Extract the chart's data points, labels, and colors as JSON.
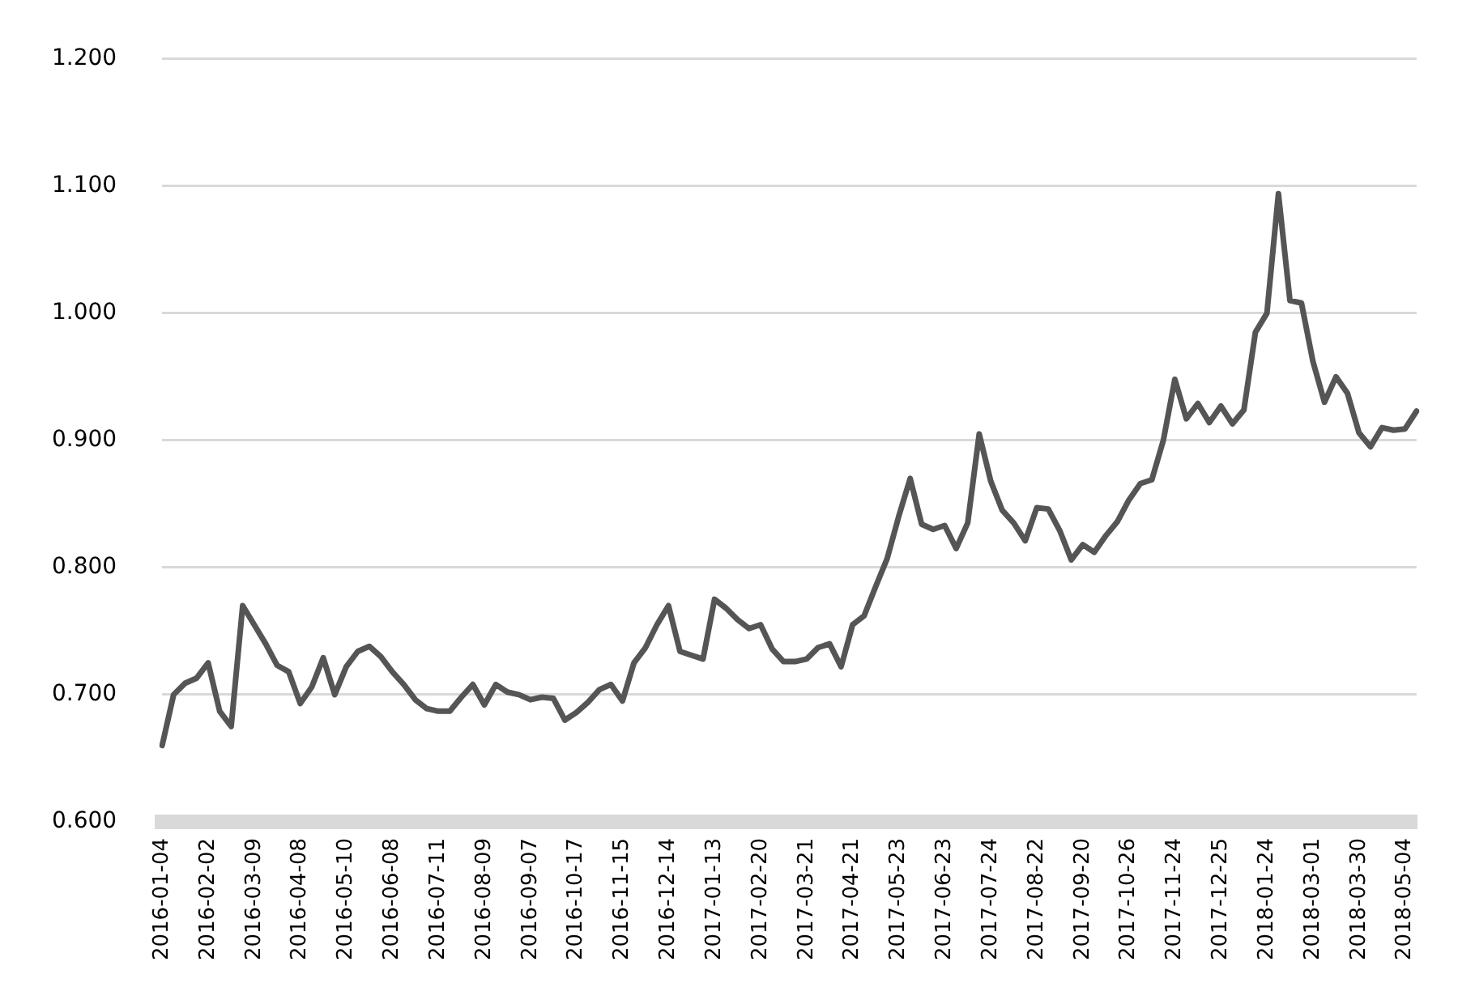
{
  "chart_data": {
    "type": "line",
    "categories": [
      "2016-01-04",
      null,
      null,
      null,
      "2016-02-02",
      null,
      null,
      null,
      "2016-03-09",
      null,
      null,
      null,
      "2016-04-08",
      null,
      null,
      null,
      "2016-05-10",
      null,
      null,
      null,
      "2016-06-08",
      null,
      null,
      null,
      "2016-07-11",
      null,
      null,
      null,
      "2016-08-09",
      null,
      null,
      null,
      "2016-09-07",
      null,
      null,
      null,
      "2016-10-17",
      null,
      null,
      null,
      "2016-11-15",
      null,
      null,
      null,
      "2016-12-14",
      null,
      null,
      null,
      "2017-01-13",
      null,
      null,
      null,
      "2017-02-20",
      null,
      null,
      null,
      "2017-03-21",
      null,
      null,
      null,
      "2017-04-21",
      null,
      null,
      null,
      "2017-05-23",
      null,
      null,
      null,
      "2017-06-23",
      null,
      null,
      null,
      "2017-07-24",
      null,
      null,
      null,
      "2017-08-22",
      null,
      null,
      null,
      "2017-09-20",
      null,
      null,
      null,
      "2017-10-26",
      null,
      null,
      null,
      "2017-11-24",
      null,
      null,
      null,
      "2017-12-25",
      null,
      null,
      null,
      "2018-01-24",
      null,
      null,
      null,
      "2018-03-01",
      null,
      null,
      null,
      "2018-03-30",
      null,
      null,
      null,
      "2018-05-04",
      null
    ],
    "series": [
      {
        "color": "#555555",
        "values": [
          0.66,
          0.7,
          0.709,
          0.713,
          0.725,
          0.687,
          0.675,
          0.77,
          0.755,
          0.74,
          0.723,
          0.718,
          0.693,
          0.706,
          0.729,
          0.7,
          0.722,
          0.734,
          0.738,
          0.73,
          0.718,
          0.708,
          0.696,
          0.689,
          0.687,
          0.687,
          0.698,
          0.708,
          0.692,
          0.708,
          0.702,
          0.7,
          0.696,
          0.698,
          0.697,
          0.68,
          0.686,
          0.694,
          0.704,
          0.708,
          0.695,
          0.725,
          0.737,
          0.755,
          0.77,
          0.734,
          0.731,
          0.728,
          0.775,
          0.768,
          0.759,
          0.752,
          0.755,
          0.736,
          0.726,
          0.726,
          0.728,
          0.737,
          0.74,
          0.722,
          0.755,
          0.762,
          0.785,
          0.807,
          0.84,
          0.87,
          0.834,
          0.83,
          0.833,
          0.815,
          0.835,
          0.905,
          0.868,
          0.845,
          0.835,
          0.821,
          0.847,
          0.846,
          0.829,
          0.806,
          0.818,
          0.812,
          0.825,
          0.836,
          0.853,
          0.866,
          0.869,
          0.9,
          0.948,
          0.917,
          0.929,
          0.914,
          0.927,
          0.913,
          0.924,
          0.985,
          1.0,
          1.094,
          1.01,
          1.008,
          0.962,
          0.93,
          0.95,
          0.937,
          0.906,
          0.895,
          0.91,
          0.908,
          0.909,
          0.923
        ]
      }
    ],
    "ylim": [
      0.6,
      1.2
    ],
    "yticks": [
      {
        "value": 0.6,
        "label": "0.600"
      },
      {
        "value": 0.7,
        "label": "0.700"
      },
      {
        "value": 0.8,
        "label": "0.800"
      },
      {
        "value": 0.9,
        "label": "0.900"
      },
      {
        "value": 1.0,
        "label": "1.000"
      },
      {
        "value": 1.1,
        "label": "1.100"
      },
      {
        "value": 1.2,
        "label": "1.200"
      }
    ],
    "grid": "y",
    "legend": false,
    "marker": "none",
    "line_style": "solid"
  }
}
